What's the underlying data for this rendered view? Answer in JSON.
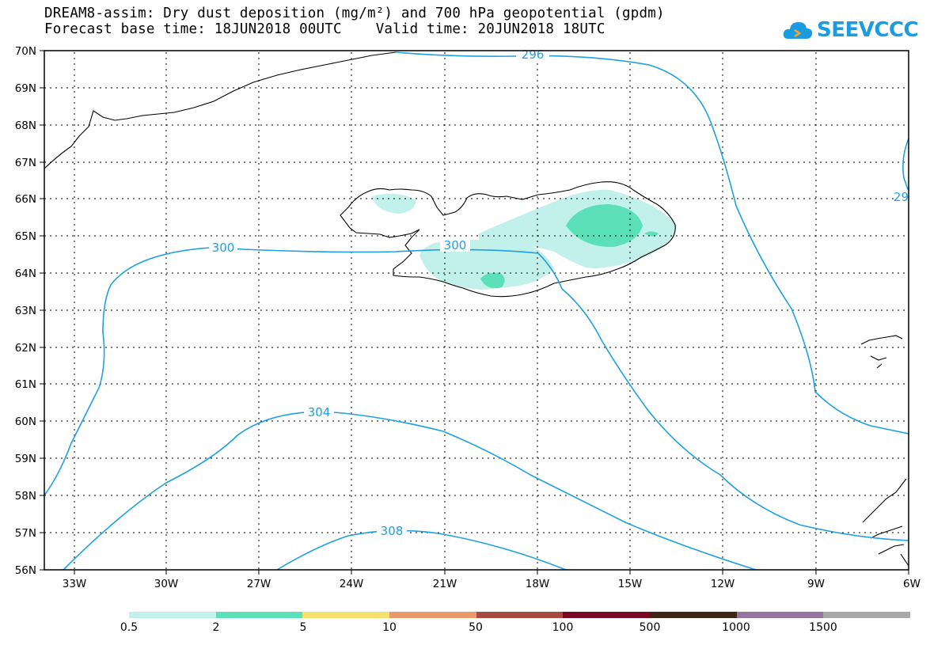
{
  "title_line1": "DREAM8-assim: Dry dust deposition (mg/m²) and 700 hPa geopotential (gpdm)",
  "title_line2": "Forecast base time: 18JUN2018 00UTC    Valid time: 20JUN2018 18UTC",
  "logo_text": "SEEVCCC",
  "map": {
    "lat_labels": [
      "70N",
      "69N",
      "68N",
      "67N",
      "66N",
      "65N",
      "64N",
      "63N",
      "62N",
      "61N",
      "60N",
      "59N",
      "58N",
      "57N",
      "56N"
    ],
    "lon_labels": [
      "33W",
      "30W",
      "27W",
      "24W",
      "21W",
      "18W",
      "15W",
      "12W",
      "9W",
      "6W"
    ],
    "contour_labels": [
      "296",
      "300",
      "300",
      "304",
      "308",
      "29"
    ],
    "contour_color": "#1fa0e0"
  },
  "legend": {
    "colors": [
      "#c2f0ea",
      "#5ce0b8",
      "#f5e26c",
      "#ea9a6a",
      "#a84a42",
      "#7a0a24",
      "#3c2814",
      "#96749e",
      "#a8a8a8"
    ],
    "labels": [
      "0.5",
      "2",
      "5",
      "10",
      "50",
      "100",
      "500",
      "1000",
      "1500"
    ]
  }
}
